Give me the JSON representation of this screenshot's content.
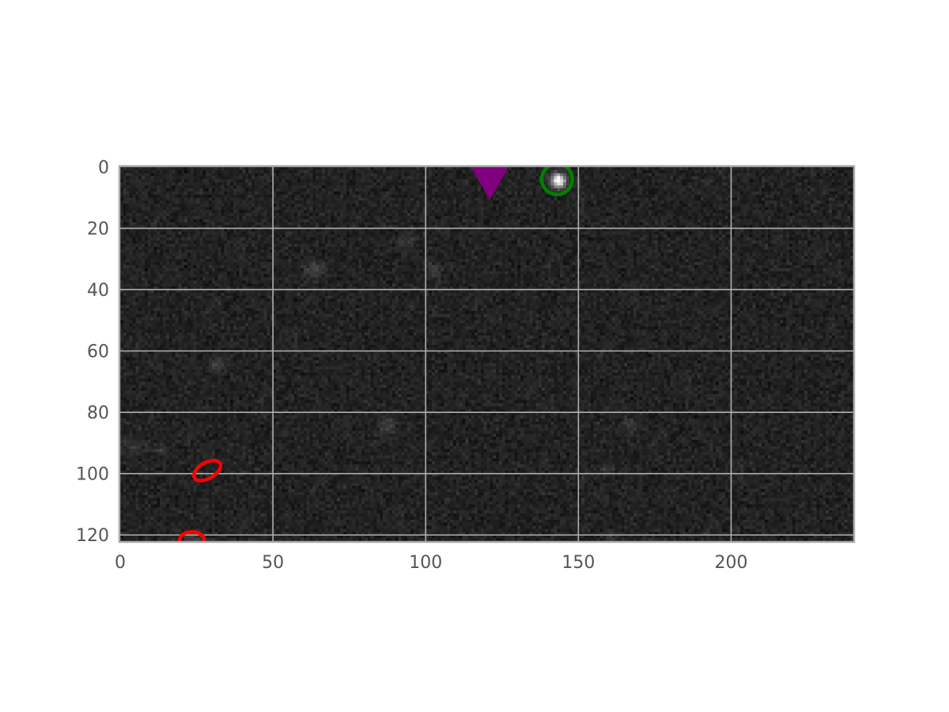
{
  "chart_data": {
    "type": "scatter",
    "background": "astronomical-image",
    "colormap": "gray",
    "xlim": [
      0,
      240
    ],
    "ylim": [
      0,
      122
    ],
    "y_inverted": true,
    "grid": true,
    "x_ticks": [
      0,
      50,
      100,
      150,
      200
    ],
    "y_ticks": [
      0,
      20,
      40,
      60,
      80,
      100,
      120
    ],
    "sources": [
      {
        "x": 143,
        "y": 4,
        "peak": 0.95,
        "sigma": 1.6
      },
      {
        "x": 63,
        "y": 33,
        "peak": 0.12,
        "sigma": 2.2
      },
      {
        "x": 102,
        "y": 33,
        "peak": 0.14,
        "sigma": 1.6
      },
      {
        "x": 93,
        "y": 24,
        "peak": 0.1,
        "sigma": 1.8
      },
      {
        "x": 31,
        "y": 64,
        "peak": 0.12,
        "sigma": 1.5
      },
      {
        "x": 87,
        "y": 84,
        "peak": 0.1,
        "sigma": 2.2
      },
      {
        "x": 166,
        "y": 84,
        "peak": 0.08,
        "sigma": 2.0
      },
      {
        "x": 4,
        "y": 91,
        "peak": 0.09,
        "sigma": 2.0
      },
      {
        "x": 13,
        "y": 92,
        "peak": 0.08,
        "sigma": 1.5
      },
      {
        "x": 159,
        "y": 98,
        "peak": 0.08,
        "sigma": 1.5
      },
      {
        "x": 23,
        "y": 121,
        "peak": 0.14,
        "sigma": 1.6
      },
      {
        "x": 160,
        "y": 121,
        "peak": 0.08,
        "sigma": 1.5
      }
    ],
    "markers": [
      {
        "shape": "triangle-down",
        "x": 121,
        "y": 2,
        "color": "#800080"
      },
      {
        "shape": "circle",
        "x": 143,
        "y": 4,
        "rx": 5,
        "ry": 5,
        "angle": 0,
        "color": "#008000"
      },
      {
        "shape": "ellipse",
        "x": 28.5,
        "y": 99,
        "rx": 4.8,
        "ry": 2.6,
        "angle": -30,
        "color": "#ff0000"
      },
      {
        "shape": "ellipse",
        "x": 23.5,
        "y": 121.5,
        "rx": 4,
        "ry": 2.5,
        "angle": 0,
        "color": "#ff0000"
      }
    ]
  }
}
